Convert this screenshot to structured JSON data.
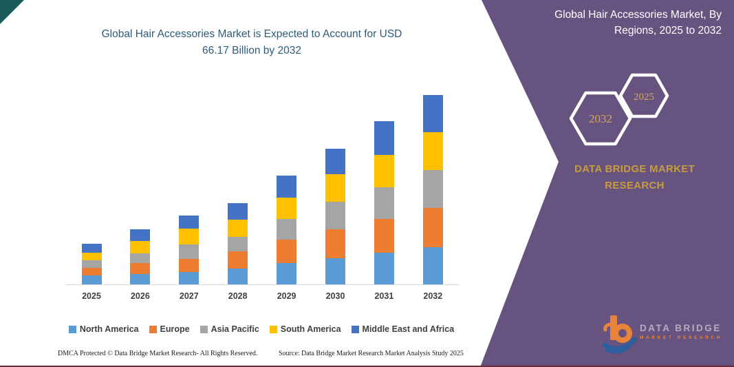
{
  "main": {
    "title_line1": "Global Hair Accessories Market is Expected to Account for USD",
    "title_line2": "66.17 Billion by 2032"
  },
  "sidebar": {
    "heading_line1": "Global Hair Accessories Market, By",
    "heading_line2": "Regions, 2025 to 2032",
    "hexagon_back_label": "2032",
    "hexagon_front_label": "2025",
    "brand": "DATA BRIDGE MARKET RESEARCH",
    "logo_name": "DATA BRIDGE",
    "logo_sub": "MARKET RESEARCH",
    "background_color": "#675380",
    "gold_color": "#c79c3e"
  },
  "footer": {
    "left": "DMCA Protected © Data Bridge Market Research-  All Rights Reserved.",
    "right": "Source: Data Bridge Market Research  Market Analysis Study 2025"
  },
  "chart_data": {
    "type": "bar",
    "stacked": true,
    "title": "Global Hair Accessories Market is Expected to Account for USD 66.17 Billion by 2032",
    "unit": "USD Billion",
    "categories": [
      "2025",
      "2026",
      "2027",
      "2028",
      "2029",
      "2030",
      "2031",
      "2032"
    ],
    "series": [
      {
        "name": "North America",
        "color": "#5b9bd5",
        "values": [
          3.1,
          3.6,
          4.4,
          5.6,
          7.4,
          9.2,
          11.1,
          13.1
        ]
      },
      {
        "name": "Europe",
        "color": "#ed7d31",
        "values": [
          2.7,
          4.0,
          4.6,
          6.0,
          8.3,
          10.1,
          11.8,
          13.7
        ]
      },
      {
        "name": "Asia Pacific",
        "color": "#a5a5a5",
        "values": [
          2.7,
          3.2,
          5.1,
          5.0,
          7.1,
          9.6,
          11.0,
          13.3
        ]
      },
      {
        "name": "South America",
        "color": "#ffc000",
        "values": [
          2.7,
          4.4,
          5.5,
          6.1,
          7.5,
          9.6,
          11.5,
          13.3
        ]
      },
      {
        "name": "Middle East and Africa",
        "color": "#4472c4",
        "values": [
          3.1,
          4.0,
          4.4,
          5.8,
          7.9,
          8.9,
          11.7,
          12.8
        ]
      }
    ],
    "totals": [
      14.3,
      19.2,
      24.0,
      28.5,
      38.2,
      47.4,
      57.1,
      66.17
    ],
    "ylim": [
      0,
      70
    ],
    "grid": false,
    "y_axis_labels_visible": false,
    "legend_position": "bottom"
  }
}
